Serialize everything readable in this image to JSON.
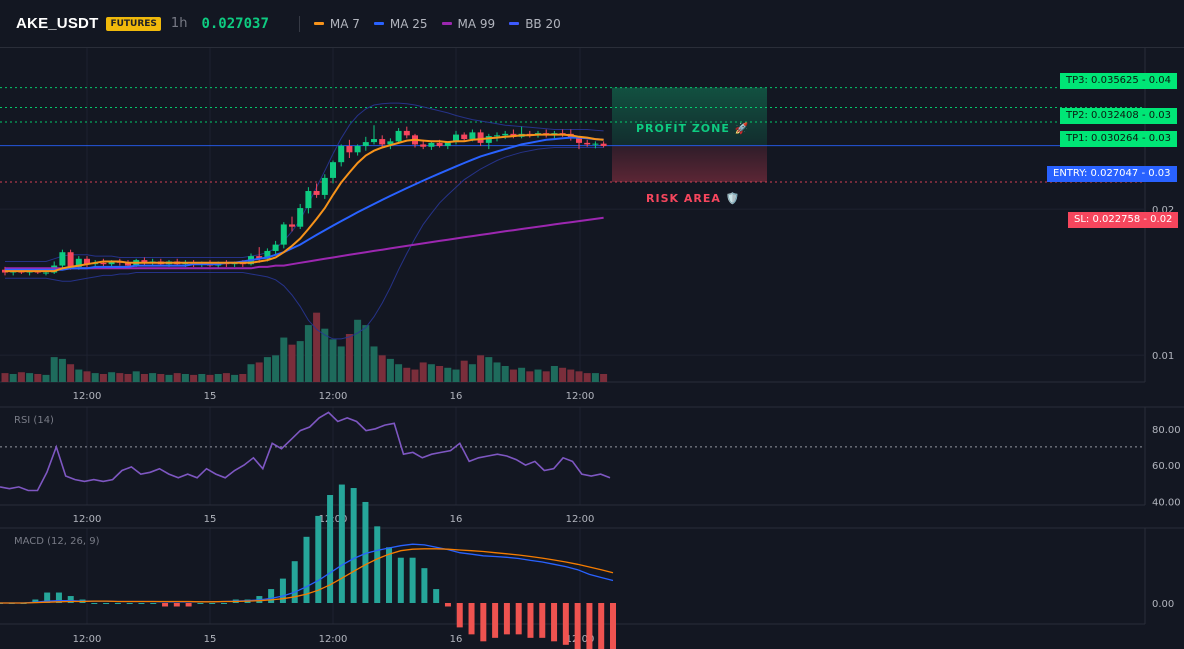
{
  "header": {
    "symbol": "AKE_USDT",
    "badge": "FUTURES",
    "interval": "1h",
    "last_price": "0.027037",
    "indicators": [
      {
        "label": "MA 7",
        "color": "#f7931a"
      },
      {
        "label": "MA 25",
        "color": "#2962ff"
      },
      {
        "label": "MA 99",
        "color": "#9c27b0"
      },
      {
        "label": "BB 20",
        "color": "#3d5afe"
      }
    ]
  },
  "levels": {
    "tp3": {
      "tag": "TP3: 0.035625",
      "axis": "0.04",
      "value": 0.035625
    },
    "tp2": {
      "tag": "TP2: 0.032408",
      "axis": "0.03",
      "value": 0.032408
    },
    "tp1": {
      "tag": "TP1: 0.030264",
      "axis": "0.03",
      "value": 0.030264
    },
    "entry": {
      "tag": "ENTRY: 0.027047",
      "axis": "0.03",
      "value": 0.027047
    },
    "sl": {
      "tag": "SL: 0.022758",
      "axis": "0.02",
      "value": 0.022758
    }
  },
  "zones": {
    "profit": "PROFIT ZONE 🚀",
    "risk": "RISK AREA 🛡️"
  },
  "colors": {
    "up": "#0ecb81",
    "down": "#f6465d",
    "vol_up": "#1e6b5c",
    "vol_down": "#7a2e3b",
    "ma7": "#f7931a",
    "ma25": "#2962ff",
    "ma99": "#9c27b0",
    "bb": "#283593",
    "rsi": "#7e57c2",
    "macd": "#2962ff",
    "signal": "#f57c00",
    "hist_up": "#26a69a",
    "hist_down": "#ef5350"
  },
  "panels": {
    "rsi_title": "RSI (14)",
    "macd_title": "MACD (12, 26, 9)"
  },
  "chart_data": [
    {
      "type": "candlestick",
      "title": "AKE_USDT 1h",
      "x_labels": [
        "12:00",
        "15",
        "12:00",
        "16",
        "12:00"
      ],
      "y_ticks": [
        "0.02",
        "0.01"
      ],
      "scale": "log",
      "y_range": [
        0.0088,
        0.043
      ],
      "ohlc": [
        [
          0.015,
          0.0152,
          0.0146,
          0.0148
        ],
        [
          0.0148,
          0.0151,
          0.0146,
          0.0149
        ],
        [
          0.0149,
          0.015,
          0.0147,
          0.0148
        ],
        [
          0.0148,
          0.015,
          0.0146,
          0.0149
        ],
        [
          0.0149,
          0.0151,
          0.0147,
          0.0148
        ],
        [
          0.0148,
          0.0149,
          0.0146,
          0.0148
        ],
        [
          0.0148,
          0.0156,
          0.0147,
          0.0153
        ],
        [
          0.0153,
          0.0165,
          0.015,
          0.0163
        ],
        [
          0.0163,
          0.0165,
          0.015,
          0.0152
        ],
        [
          0.0152,
          0.016,
          0.015,
          0.0158
        ],
        [
          0.0158,
          0.016,
          0.0151,
          0.0154
        ],
        [
          0.0154,
          0.0157,
          0.0151,
          0.0155
        ],
        [
          0.0155,
          0.0158,
          0.0152,
          0.0154
        ],
        [
          0.0154,
          0.0157,
          0.0152,
          0.0156
        ],
        [
          0.0156,
          0.0158,
          0.0153,
          0.0155
        ],
        [
          0.0155,
          0.0157,
          0.0152,
          0.0153
        ],
        [
          0.0153,
          0.0158,
          0.0152,
          0.0157
        ],
        [
          0.0157,
          0.0159,
          0.0153,
          0.0155
        ],
        [
          0.0155,
          0.0158,
          0.0153,
          0.0156
        ],
        [
          0.0156,
          0.0158,
          0.0153,
          0.0154
        ],
        [
          0.0154,
          0.0157,
          0.0152,
          0.0156
        ],
        [
          0.0156,
          0.0158,
          0.0153,
          0.0154
        ],
        [
          0.0154,
          0.0157,
          0.0152,
          0.0155
        ],
        [
          0.0155,
          0.0157,
          0.0152,
          0.0154
        ],
        [
          0.0154,
          0.0156,
          0.0152,
          0.0155
        ],
        [
          0.0155,
          0.0157,
          0.0152,
          0.0153
        ],
        [
          0.0153,
          0.0156,
          0.0151,
          0.0155
        ],
        [
          0.0155,
          0.0157,
          0.0152,
          0.0154
        ],
        [
          0.0154,
          0.0156,
          0.0152,
          0.0155
        ],
        [
          0.0155,
          0.0157,
          0.0152,
          0.0154
        ],
        [
          0.0154,
          0.0162,
          0.0153,
          0.016
        ],
        [
          0.016,
          0.0167,
          0.0155,
          0.0158
        ],
        [
          0.0158,
          0.0166,
          0.0156,
          0.0164
        ],
        [
          0.0164,
          0.0172,
          0.0161,
          0.0169
        ],
        [
          0.0169,
          0.0188,
          0.0166,
          0.0186
        ],
        [
          0.0186,
          0.0193,
          0.018,
          0.0184
        ],
        [
          0.0184,
          0.0205,
          0.0182,
          0.0201
        ],
        [
          0.0201,
          0.0222,
          0.0196,
          0.0218
        ],
        [
          0.0218,
          0.0226,
          0.0211,
          0.0214
        ],
        [
          0.0214,
          0.0236,
          0.021,
          0.0232
        ],
        [
          0.0232,
          0.0252,
          0.0226,
          0.025
        ],
        [
          0.025,
          0.0272,
          0.0245,
          0.027
        ],
        [
          0.027,
          0.0278,
          0.0255,
          0.0262
        ],
        [
          0.0262,
          0.0272,
          0.0258,
          0.027
        ],
        [
          0.027,
          0.0282,
          0.0264,
          0.0275
        ],
        [
          0.0275,
          0.0298,
          0.0272,
          0.0279
        ],
        [
          0.0279,
          0.0284,
          0.0268,
          0.0272
        ],
        [
          0.0272,
          0.028,
          0.0266,
          0.0276
        ],
        [
          0.0276,
          0.0294,
          0.0274,
          0.029
        ],
        [
          0.029,
          0.0296,
          0.028,
          0.0284
        ],
        [
          0.0284,
          0.0286,
          0.0268,
          0.0272
        ],
        [
          0.0272,
          0.0278,
          0.0266,
          0.0269
        ],
        [
          0.0269,
          0.0276,
          0.0265,
          0.0274
        ],
        [
          0.0274,
          0.0278,
          0.0268,
          0.027
        ],
        [
          0.027,
          0.0276,
          0.0266,
          0.0275
        ],
        [
          0.0275,
          0.029,
          0.0272,
          0.0285
        ],
        [
          0.0285,
          0.0288,
          0.0276,
          0.0279
        ],
        [
          0.0279,
          0.0292,
          0.0276,
          0.0288
        ],
        [
          0.0288,
          0.0292,
          0.027,
          0.0274
        ],
        [
          0.0274,
          0.0286,
          0.0266,
          0.0283
        ],
        [
          0.0283,
          0.0288,
          0.0276,
          0.0284
        ],
        [
          0.0284,
          0.029,
          0.0279,
          0.0286
        ],
        [
          0.0286,
          0.0292,
          0.028,
          0.0282
        ],
        [
          0.0282,
          0.0296,
          0.028,
          0.0286
        ],
        [
          0.0286,
          0.029,
          0.0281,
          0.0284
        ],
        [
          0.0284,
          0.029,
          0.0281,
          0.0287
        ],
        [
          0.0287,
          0.0292,
          0.0281,
          0.0285
        ],
        [
          0.0285,
          0.029,
          0.028,
          0.0287
        ],
        [
          0.0287,
          0.0292,
          0.0282,
          0.0286
        ],
        [
          0.0286,
          0.0292,
          0.0277,
          0.028
        ],
        [
          0.028,
          0.0283,
          0.0266,
          0.0274
        ],
        [
          0.0274,
          0.0278,
          0.0269,
          0.0272
        ],
        [
          0.0272,
          0.0276,
          0.0267,
          0.0273
        ],
        [
          0.0273,
          0.0276,
          0.0268,
          0.027
        ]
      ],
      "volume": [
        10,
        9,
        11,
        10,
        9,
        8,
        28,
        26,
        20,
        14,
        12,
        10,
        9,
        11,
        10,
        9,
        12,
        9,
        10,
        9,
        8,
        10,
        9,
        8,
        9,
        8,
        9,
        10,
        8,
        9,
        20,
        22,
        28,
        30,
        50,
        42,
        46,
        64,
        78,
        60,
        48,
        40,
        54,
        70,
        64,
        40,
        30,
        26,
        20,
        16,
        14,
        22,
        20,
        18,
        16,
        14,
        24,
        20,
        30,
        28,
        22,
        18,
        14,
        16,
        12,
        14,
        12,
        18,
        16,
        14,
        12,
        10,
        10,
        9
      ],
      "ma7": [
        0.0149,
        0.0149,
        0.0149,
        0.0149,
        0.0149,
        0.0149,
        0.0149,
        0.0151,
        0.0152,
        0.0153,
        0.0154,
        0.0155,
        0.0156,
        0.0156,
        0.0156,
        0.0155,
        0.0155,
        0.0155,
        0.0155,
        0.0155,
        0.0155,
        0.0155,
        0.0155,
        0.0155,
        0.0155,
        0.0155,
        0.0155,
        0.0155,
        0.0155,
        0.0155,
        0.0155,
        0.0156,
        0.0157,
        0.0159,
        0.0163,
        0.0168,
        0.0174,
        0.0182,
        0.0191,
        0.0201,
        0.0214,
        0.0227,
        0.0238,
        0.0249,
        0.0258,
        0.0264,
        0.0268,
        0.0271,
        0.0274,
        0.0277,
        0.0278,
        0.0277,
        0.0276,
        0.0276,
        0.0275,
        0.0276,
        0.0276,
        0.0278,
        0.0279,
        0.028,
        0.0281,
        0.0282,
        0.0283,
        0.0284,
        0.0284,
        0.0285,
        0.0285,
        0.0285,
        0.0285,
        0.0284,
        0.0282,
        0.0281,
        0.0279,
        0.0278
      ],
      "ma25": [
        0.015,
        0.015,
        0.015,
        0.015,
        0.015,
        0.015,
        0.015,
        0.015,
        0.0151,
        0.0151,
        0.0151,
        0.0152,
        0.0152,
        0.0152,
        0.0152,
        0.0152,
        0.0153,
        0.0153,
        0.0153,
        0.0153,
        0.0153,
        0.0153,
        0.0153,
        0.0154,
        0.0154,
        0.0154,
        0.0154,
        0.0155,
        0.0155,
        0.0156,
        0.0157,
        0.0158,
        0.0159,
        0.0161,
        0.0163,
        0.0166,
        0.0169,
        0.0173,
        0.0177,
        0.0181,
        0.0185,
        0.0189,
        0.0193,
        0.0197,
        0.0201,
        0.0205,
        0.0209,
        0.0213,
        0.0217,
        0.0221,
        0.0225,
        0.0229,
        0.0233,
        0.0237,
        0.0241,
        0.0245,
        0.0249,
        0.0253,
        0.0257,
        0.026,
        0.0263,
        0.0266,
        0.0269,
        0.0272,
        0.0274,
        0.0276,
        0.0278,
        0.0279,
        0.028,
        0.0281,
        0.0281,
        0.028,
        0.0279,
        0.0278
      ],
      "ma99": [
        0.0151,
        0.0151,
        0.0151,
        0.0151,
        0.0151,
        0.0151,
        0.0151,
        0.0151,
        0.0151,
        0.0151,
        0.0151,
        0.0151,
        0.0151,
        0.0151,
        0.0151,
        0.0151,
        0.0151,
        0.0151,
        0.0151,
        0.0151,
        0.0151,
        0.0151,
        0.0151,
        0.0151,
        0.0151,
        0.0151,
        0.0151,
        0.0151,
        0.0151,
        0.0151,
        0.0151,
        0.0152,
        0.0152,
        0.0153,
        0.0153,
        0.0154,
        0.0155,
        0.0156,
        0.0157,
        0.0158,
        0.0159,
        0.016,
        0.0161,
        0.0162,
        0.0163,
        0.0164,
        0.0165,
        0.0166,
        0.0167,
        0.0168,
        0.0169,
        0.017,
        0.0171,
        0.0172,
        0.0173,
        0.0174,
        0.0175,
        0.0176,
        0.0177,
        0.0178,
        0.0179,
        0.018,
        0.0181,
        0.0182,
        0.0183,
        0.0184,
        0.0185,
        0.0186,
        0.0187,
        0.0188,
        0.0189,
        0.019,
        0.0191,
        0.0192
      ],
      "bb_upper": [
        0.0156,
        0.0156,
        0.0156,
        0.0156,
        0.0156,
        0.0156,
        0.0158,
        0.016,
        0.0161,
        0.0161,
        0.0161,
        0.016,
        0.016,
        0.016,
        0.0159,
        0.0159,
        0.0159,
        0.0159,
        0.0159,
        0.0159,
        0.0159,
        0.0159,
        0.0159,
        0.0159,
        0.0159,
        0.0159,
        0.0159,
        0.0159,
        0.0159,
        0.0159,
        0.016,
        0.0161,
        0.0163,
        0.0166,
        0.0172,
        0.018,
        0.019,
        0.0205,
        0.0222,
        0.024,
        0.026,
        0.028,
        0.0298,
        0.0312,
        0.0322,
        0.0328,
        0.033,
        0.0331,
        0.0331,
        0.033,
        0.0328,
        0.0325,
        0.0322,
        0.0319,
        0.0316,
        0.0312,
        0.0309,
        0.0306,
        0.0304,
        0.0302,
        0.03,
        0.0298,
        0.0297,
        0.0296,
        0.0295,
        0.0294,
        0.0293,
        0.0292,
        0.0292,
        0.0292,
        0.0292,
        0.0292,
        0.0291,
        0.029
      ],
      "bb_lower": [
        0.0144,
        0.0144,
        0.0144,
        0.0144,
        0.0144,
        0.0144,
        0.0143,
        0.0142,
        0.0142,
        0.0143,
        0.0144,
        0.0145,
        0.0146,
        0.0146,
        0.0147,
        0.0147,
        0.0148,
        0.0148,
        0.0148,
        0.0148,
        0.0148,
        0.0148,
        0.0148,
        0.0148,
        0.0148,
        0.0148,
        0.0148,
        0.0148,
        0.0148,
        0.0148,
        0.0147,
        0.0146,
        0.0145,
        0.0143,
        0.0139,
        0.0133,
        0.0126,
        0.0118,
        0.0113,
        0.011,
        0.0108,
        0.0108,
        0.0109,
        0.0111,
        0.0114,
        0.012,
        0.0128,
        0.0138,
        0.015,
        0.0162,
        0.0174,
        0.0186,
        0.0196,
        0.0206,
        0.0214,
        0.0222,
        0.023,
        0.0236,
        0.0242,
        0.0247,
        0.0252,
        0.0256,
        0.0259,
        0.0262,
        0.0264,
        0.0266,
        0.0267,
        0.0268,
        0.0268,
        0.0268,
        0.0268,
        0.0268,
        0.0268,
        0.0268
      ]
    },
    {
      "type": "line",
      "title": "RSI (14)",
      "y_ticks": [
        80,
        60,
        40
      ],
      "y_range": [
        38,
        92
      ],
      "reference_line": 70,
      "values": [
        48,
        47,
        48,
        46,
        46,
        56,
        70,
        54,
        52,
        51,
        52,
        51,
        52,
        57,
        59,
        55,
        56,
        58,
        55,
        53,
        55,
        53,
        58,
        55,
        53,
        57,
        60,
        64,
        58,
        72,
        69,
        74,
        79,
        81,
        86,
        89,
        84,
        86,
        84,
        79,
        80,
        82,
        83,
        66,
        67,
        64,
        66,
        67,
        68,
        72,
        62,
        64,
        65,
        66,
        65,
        63,
        60,
        62,
        57,
        58,
        64,
        62,
        55,
        54,
        55,
        53
      ],
      "values_note": "RSI readings 0-100"
    },
    {
      "type": "line",
      "title": "MACD (12, 26, 9)",
      "y_ticks": [
        "0.00"
      ],
      "macd": [
        0,
        0,
        0,
        2e-05,
        5e-05,
        6e-05,
        6e-05,
        5e-05,
        5e-05,
        5e-05,
        4e-05,
        4e-05,
        4e-05,
        4e-05,
        3e-05,
        3e-05,
        3e-05,
        3e-05,
        3e-05,
        4e-05,
        5e-05,
        6e-05,
        8e-05,
        0.00012,
        0.00018,
        0.00028,
        0.00042,
        0.00058,
        0.00078,
        0.00098,
        0.00115,
        0.00128,
        0.00136,
        0.00142,
        0.00148,
        0.00152,
        0.0015,
        0.00144,
        0.00138,
        0.0013,
        0.00126,
        0.00122,
        0.0012,
        0.00118,
        0.00115,
        0.0011,
        0.00106,
        0.001,
        0.00094,
        0.00086,
        0.00074,
        0.00066,
        0.00058
      ],
      "signal": [
        0,
        0,
        0,
        1e-05,
        2e-05,
        3e-05,
        4e-05,
        4e-05,
        5e-05,
        5e-05,
        4e-05,
        4e-05,
        4e-05,
        4e-05,
        4e-05,
        4e-05,
        4e-05,
        3e-05,
        3e-05,
        4e-05,
        4e-05,
        5e-05,
        6e-05,
        8e-05,
        0.00011,
        0.00016,
        0.00023,
        0.00033,
        0.00047,
        0.00064,
        0.00082,
        0.00099,
        0.00114,
        0.00126,
        0.00135,
        0.00139,
        0.0014,
        0.0014,
        0.00139,
        0.00137,
        0.00135,
        0.00133,
        0.0013,
        0.00127,
        0.00124,
        0.0012,
        0.00116,
        0.00111,
        0.00106,
        0.001,
        0.00093,
        0.00086,
        0.00078
      ],
      "histogram_note": "bars = macd - signal"
    }
  ]
}
